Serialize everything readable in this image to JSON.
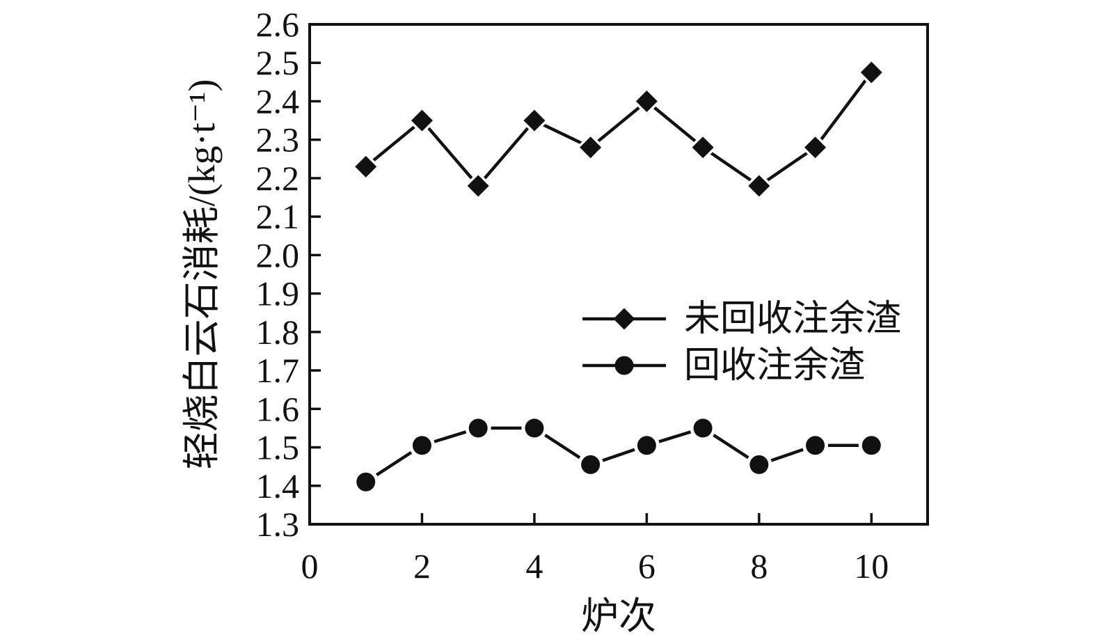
{
  "figure": {
    "background": "#ffffff",
    "ink_color": "#111111"
  },
  "chart_data": {
    "type": "line",
    "title": "",
    "xlabel": "炉次",
    "ylabel": "轻烧白云石消耗/(kg·t⁻¹)",
    "grid": false,
    "legend_position": "inside-middle-right",
    "x_axis": {
      "min": 0,
      "max": 11,
      "tick_values": [
        0,
        2,
        4,
        6,
        8,
        10
      ],
      "tick_labels": [
        "0",
        "2",
        "4",
        "6",
        "8",
        "10"
      ]
    },
    "y_axis": {
      "min": 1.3,
      "max": 2.6,
      "tick_values": [
        1.3,
        1.4,
        1.5,
        1.6,
        1.7,
        1.8,
        1.9,
        2.0,
        2.1,
        2.2,
        2.3,
        2.4,
        2.5,
        2.6
      ],
      "tick_labels": [
        "1.3",
        "1.4",
        "1.5",
        "1.6",
        "1.7",
        "1.8",
        "1.9",
        "2.0",
        "2.1",
        "2.2",
        "2.3",
        "2.4",
        "2.5",
        "2.6"
      ]
    },
    "x": [
      1,
      2,
      3,
      4,
      5,
      6,
      7,
      8,
      9,
      10
    ],
    "series": [
      {
        "name": "未回收注余渣",
        "marker": "diamond",
        "color": "#111111",
        "values": [
          2.23,
          2.35,
          2.18,
          2.35,
          2.28,
          2.4,
          2.28,
          2.18,
          2.28,
          2.475
        ]
      },
      {
        "name": "回收注余渣",
        "marker": "circle",
        "color": "#111111",
        "values": [
          1.41,
          1.505,
          1.55,
          1.55,
          1.455,
          1.505,
          1.55,
          1.455,
          1.505,
          1.505
        ]
      }
    ]
  }
}
